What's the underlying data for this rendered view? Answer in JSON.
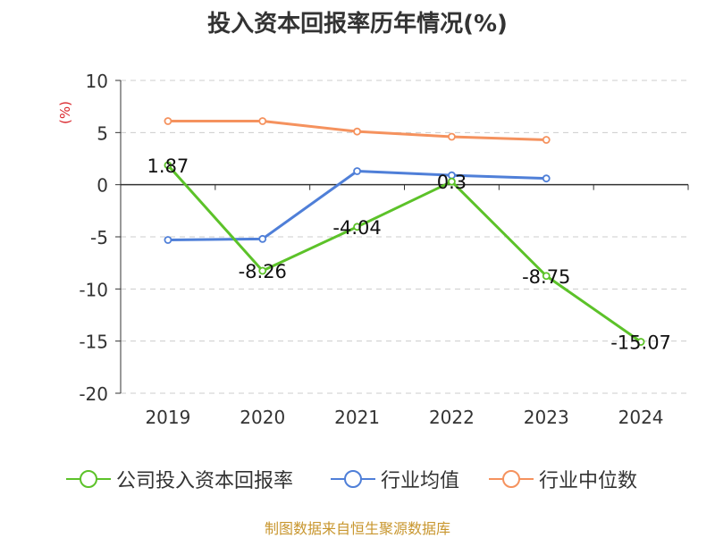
{
  "title": "投入资本回报率历年情况(%)",
  "footer": "制图数据来自恒生聚源数据库",
  "chart_data": {
    "type": "line",
    "title": "投入资本回报率历年情况(%)",
    "ylabel": "(%)",
    "xlabel": "",
    "categories": [
      "2019",
      "2020",
      "2021",
      "2022",
      "2023",
      "2024"
    ],
    "ylim": [
      -20,
      10
    ],
    "yticks": [
      10,
      5,
      0,
      -5,
      -10,
      -15,
      -20
    ],
    "grid": true,
    "legend_position": "bottom",
    "series": [
      {
        "name": "公司投入资本回报率",
        "color": "#5cc229",
        "values": [
          1.87,
          -8.26,
          -4.04,
          0.3,
          -8.75,
          -15.07
        ],
        "labels": [
          "1.87",
          "-8.26",
          "-4.04",
          "0.3",
          "-8.75",
          "-15.07"
        ]
      },
      {
        "name": "行业均值",
        "color": "#4f7fd8",
        "values": [
          -5.3,
          -5.2,
          1.3,
          0.9,
          0.6,
          null
        ]
      },
      {
        "name": "行业中位数",
        "color": "#f5925e",
        "values": [
          6.1,
          6.1,
          5.1,
          4.6,
          4.3,
          null
        ]
      }
    ]
  }
}
